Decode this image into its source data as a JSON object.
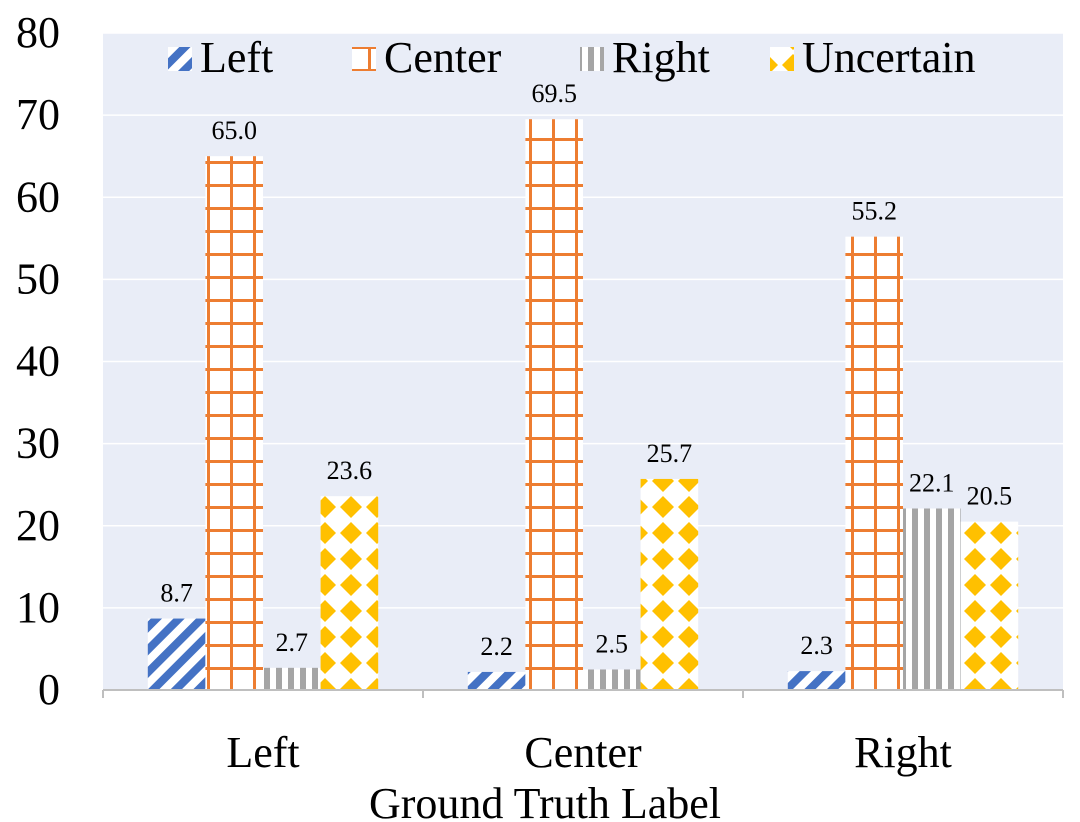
{
  "chart_data": {
    "type": "bar",
    "title": "",
    "xlabel": "Ground Truth Label",
    "ylabel": "",
    "categories": [
      "Left",
      "Center",
      "Right"
    ],
    "ylim": [
      0,
      80
    ],
    "y_ticks": [
      0,
      10,
      20,
      30,
      40,
      50,
      60,
      70,
      80
    ],
    "grid": true,
    "legend_position": "top",
    "series": [
      {
        "name": "Left",
        "values": [
          8.7,
          2.2,
          2.3
        ],
        "value_labels": [
          "8.7",
          "2.2",
          "2.3"
        ],
        "color": "#4472C4",
        "pattern": "diagonal-stripes"
      },
      {
        "name": "Center",
        "values": [
          65.0,
          69.5,
          55.2
        ],
        "value_labels": [
          "65.0",
          "69.5",
          "55.2"
        ],
        "color": "#ED7D31",
        "pattern": "grid"
      },
      {
        "name": "Right",
        "values": [
          2.7,
          2.5,
          22.1
        ],
        "value_labels": [
          "2.7",
          "2.5",
          "22.1"
        ],
        "color": "#A5A5A5",
        "pattern": "vertical-stripes"
      },
      {
        "name": "Uncertain",
        "values": [
          23.6,
          25.7,
          20.5
        ],
        "value_labels": [
          "23.6",
          "25.7",
          "20.5"
        ],
        "color": "#FFC000",
        "pattern": "diamonds"
      }
    ],
    "plot_background": "#E9EDF7",
    "gridline_color": "#FFFFFF"
  }
}
